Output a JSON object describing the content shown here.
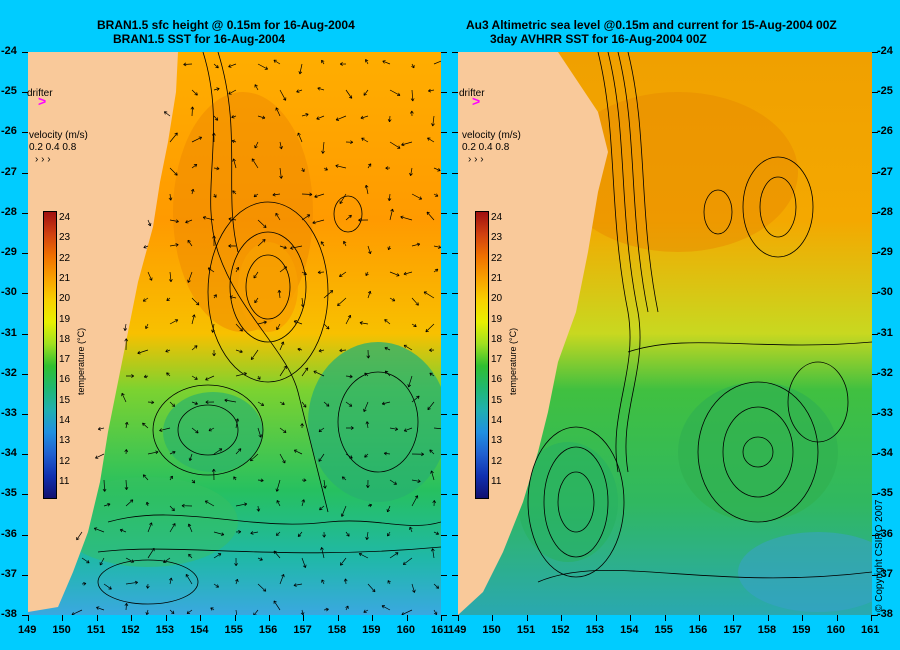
{
  "titles": {
    "left_line1": "BRAN1.5 sfc height @ 0.15m for 16-Aug-2004",
    "left_line2": "BRAN1.5 SST for 16-Aug-2004",
    "right_line1": "Au3 Altimetric sea level  @0.15m and current for 15-Aug-2004 00Z",
    "right_line2": "3day AVHRR SST for 16-Aug-2004 00Z"
  },
  "lat_labels": [
    "-24",
    "-25",
    "-26",
    "-27",
    "-28",
    "-29",
    "-30",
    "-31",
    "-32",
    "-33",
    "-34",
    "-35",
    "-36",
    "-37",
    "-38"
  ],
  "lon_labels": [
    "149",
    "150",
    "151",
    "152",
    "153",
    "154",
    "155",
    "156",
    "157",
    "158",
    "159",
    "160",
    "161"
  ],
  "legend": {
    "drifter": "drifter",
    "drifter_mark": ">",
    "velocity_title": "velocity (m/s)",
    "velocity_values": "0.2 0.4 0.8",
    "velocity_arrows": "›  ›  ›"
  },
  "colorbar": {
    "title": "temperature (°C)",
    "labels": [
      "24",
      "23",
      "22",
      "21",
      "20",
      "19",
      "18",
      "17",
      "16",
      "15",
      "14",
      "13",
      "12",
      "11"
    ]
  },
  "copyright": "© Copyright CSIRO 2007",
  "colors": {
    "background": "#00ccff",
    "land": "#f9c99a",
    "drifter": "#ff00ff"
  }
}
